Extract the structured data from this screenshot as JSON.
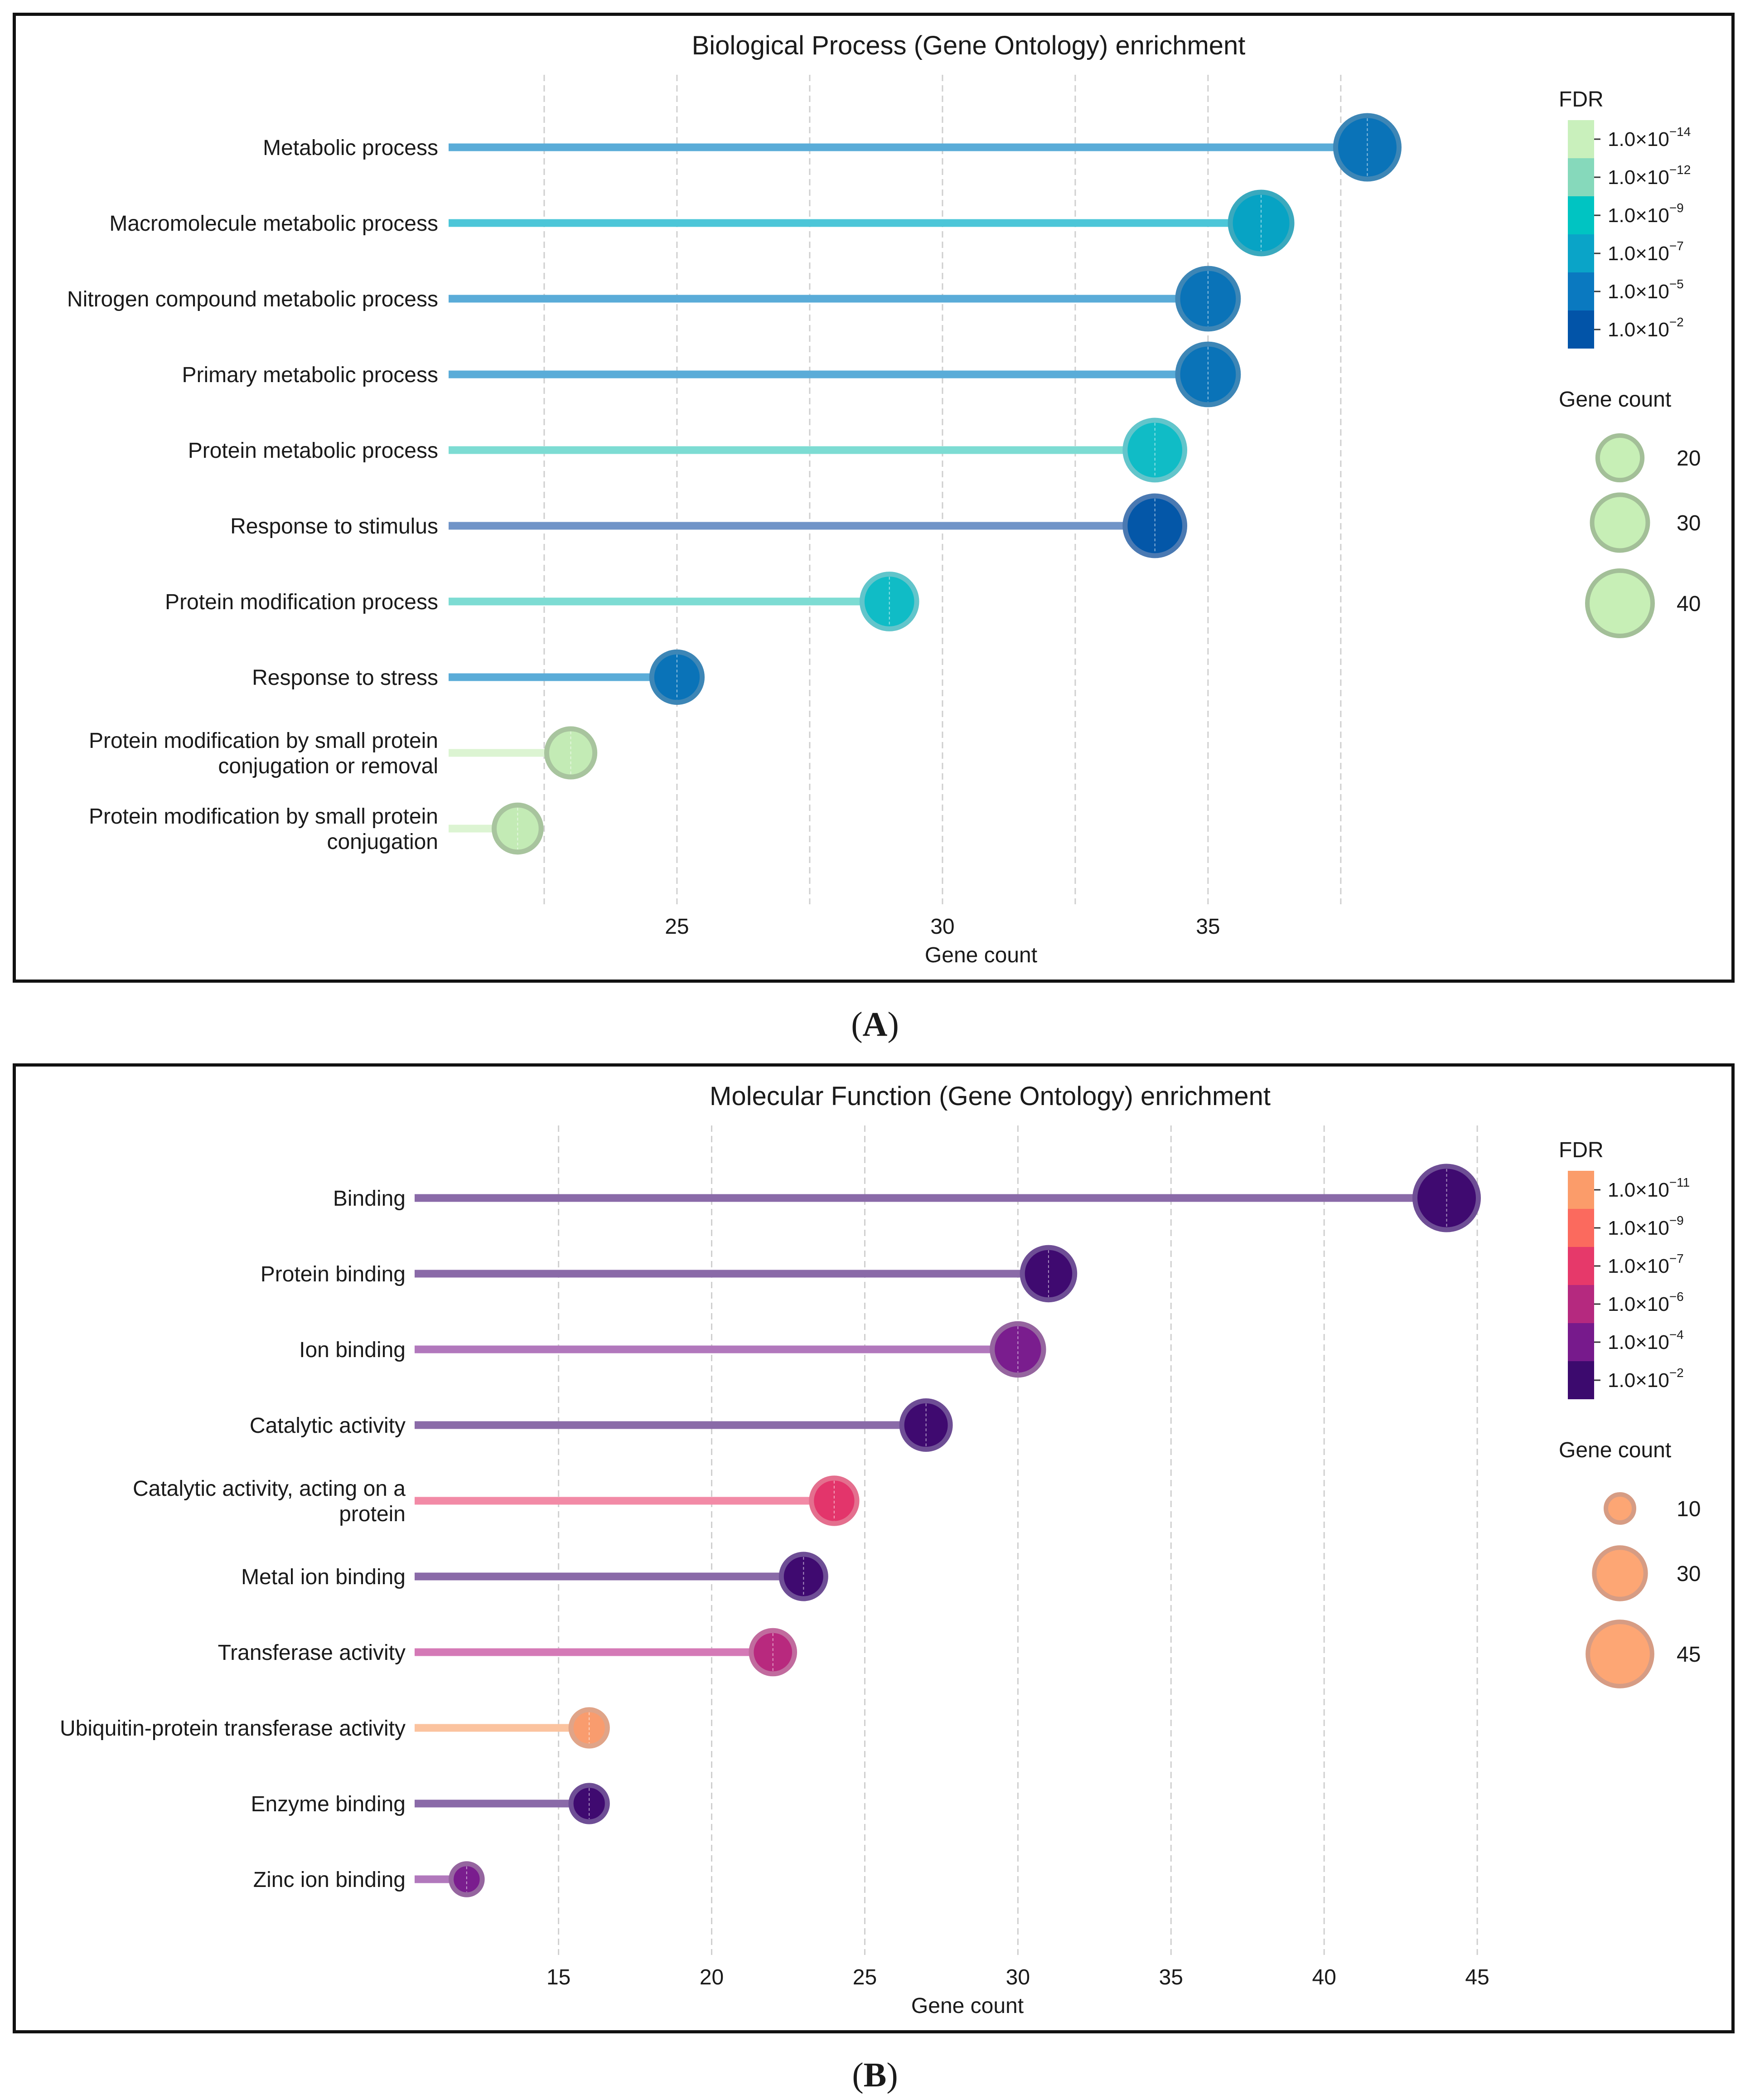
{
  "captions": [
    {
      "open": "(",
      "letter": "A",
      "close": ")"
    },
    {
      "open": "(",
      "letter": "B",
      "close": ")"
    }
  ],
  "chart_data": [
    {
      "type": "lollipop",
      "title": "Biological Process (Gene Ontology) enrichment",
      "xlabel": "Gene count",
      "xlim": [
        20.7,
        39.6
      ],
      "xticks": [
        25,
        30,
        35
      ],
      "grid_x": [
        22.5,
        25,
        27.5,
        30,
        32.5,
        35,
        37.5
      ],
      "categories": [
        "Metabolic process",
        "Macromolecule metabolic process",
        "Nitrogen compound metabolic process",
        "Primary metabolic process",
        "Protein metabolic process",
        "Response to stimulus",
        "Protein modification process",
        "Response to stress",
        "Protein modification by small protein conjugation or removal",
        "Protein modification by small protein conjugation"
      ],
      "label_lines": [
        [
          "Metabolic process"
        ],
        [
          "Macromolecule metabolic process"
        ],
        [
          "Nitrogen compound metabolic process"
        ],
        [
          "Primary metabolic process"
        ],
        [
          "Protein metabolic process"
        ],
        [
          "Response to stimulus"
        ],
        [
          "Protein modification process"
        ],
        [
          "Response to stress"
        ],
        [
          "Protein modification by small protein",
          "conjugation or removal"
        ],
        [
          "Protein modification by small protein",
          "conjugation"
        ]
      ],
      "values": [
        38,
        36,
        35,
        35,
        34,
        34,
        29,
        25,
        23,
        22
      ],
      "point_colors": [
        "#0a73b8",
        "#07a3c4",
        "#0a73b8",
        "#0a73b8",
        "#10bcc6",
        "#0457a8",
        "#10bcc6",
        "#0a73b8",
        "#c3ebb5",
        "#c3ebb5"
      ],
      "point_edges": [
        "#3d86b6",
        "#3aa9be",
        "#3d86b6",
        "#3d86b6",
        "#62c5cb",
        "#4a79b2",
        "#62c5cb",
        "#3d86b6",
        "#a8c49e",
        "#a8c49e"
      ],
      "stem_colors": [
        "#5aacd8",
        "#4cc6d8",
        "#5aacd8",
        "#5aacd8",
        "#7ddcd3",
        "#7094c8",
        "#7ddcd3",
        "#5aacd8",
        "#dcf4d2",
        "#dcf4d2"
      ],
      "legend": {
        "fdr_title": "FDR",
        "fdr_colors": [
          "#c9f0bc",
          "#86d9bb",
          "#00c4c2",
          "#0aa4c8",
          "#0a79c0",
          "#0254a8"
        ],
        "fdr_labels": [
          {
            "base": "1.0×10",
            "exp": "−14"
          },
          {
            "base": "1.0×10",
            "exp": "−12"
          },
          {
            "base": "1.0×10",
            "exp": "−9"
          },
          {
            "base": "1.0×10",
            "exp": "−7"
          },
          {
            "base": "1.0×10",
            "exp": "−5"
          },
          {
            "base": "1.0×10",
            "exp": "−2"
          }
        ],
        "size_title": "Gene count",
        "size_values": [
          20,
          30,
          40
        ],
        "size_fill": "#c7efb6",
        "size_edge": "#a3bf98"
      }
    },
    {
      "type": "lollipop",
      "title": "Molecular Function (Gene Ontology) enrichment",
      "xlabel": "Gene count",
      "xlim": [
        10.3,
        46.7
      ],
      "xticks": [
        15,
        20,
        25,
        30,
        35,
        40,
        45
      ],
      "grid_x": [
        15,
        20,
        25,
        30,
        35,
        40,
        45
      ],
      "categories": [
        "Binding",
        "Protein binding",
        "Ion binding",
        "Catalytic activity",
        "Catalytic activity, acting on a protein",
        "Metal ion binding",
        "Transferase activity",
        "Ubiquitin-protein transferase activity",
        "Enzyme binding",
        "Zinc ion binding"
      ],
      "label_lines": [
        [
          "Binding"
        ],
        [
          "Protein binding"
        ],
        [
          "Ion binding"
        ],
        [
          "Catalytic activity"
        ],
        [
          "Catalytic activity, acting on a",
          "protein"
        ],
        [
          "Metal ion binding"
        ],
        [
          "Transferase activity"
        ],
        [
          "Ubiquitin-protein transferase activity"
        ],
        [
          "Enzyme binding"
        ],
        [
          "Zinc ion binding"
        ]
      ],
      "values": [
        44,
        31,
        30,
        27,
        24,
        23,
        22,
        16,
        16,
        12
      ],
      "point_colors": [
        "#3f0a70",
        "#3f0a70",
        "#7a1d8e",
        "#3f0a70",
        "#e3356b",
        "#3f0a70",
        "#b8297e",
        "#f99c6e",
        "#3f0a70",
        "#7a1d8e"
      ],
      "point_edges": [
        "#6e4e95",
        "#6e4e95",
        "#95659f",
        "#6e4e95",
        "#e46f8e",
        "#6e4e95",
        "#c16b9e",
        "#e0a488",
        "#6e4e95",
        "#95659f"
      ],
      "stem_colors": [
        "#8a6aa8",
        "#8a6aa8",
        "#b178bc",
        "#8a6aa8",
        "#f28aa6",
        "#8a6aa8",
        "#d479b6",
        "#fbc39f",
        "#8a6aa8",
        "#b178bc"
      ],
      "legend": {
        "fdr_title": "FDR",
        "fdr_colors": [
          "#fb9c6a",
          "#fb6a5e",
          "#e6396a",
          "#b5297f",
          "#771a8c",
          "#3c0a6e"
        ],
        "fdr_labels": [
          {
            "base": "1.0×10",
            "exp": "−11"
          },
          {
            "base": "1.0×10",
            "exp": "−9"
          },
          {
            "base": "1.0×10",
            "exp": "−7"
          },
          {
            "base": "1.0×10",
            "exp": "−6"
          },
          {
            "base": "1.0×10",
            "exp": "−4"
          },
          {
            "base": "1.0×10",
            "exp": "−2"
          }
        ],
        "size_title": "Gene count",
        "size_values": [
          10,
          30,
          45
        ],
        "size_fill": "#fda674",
        "size_edge": "#d69c84"
      }
    }
  ]
}
